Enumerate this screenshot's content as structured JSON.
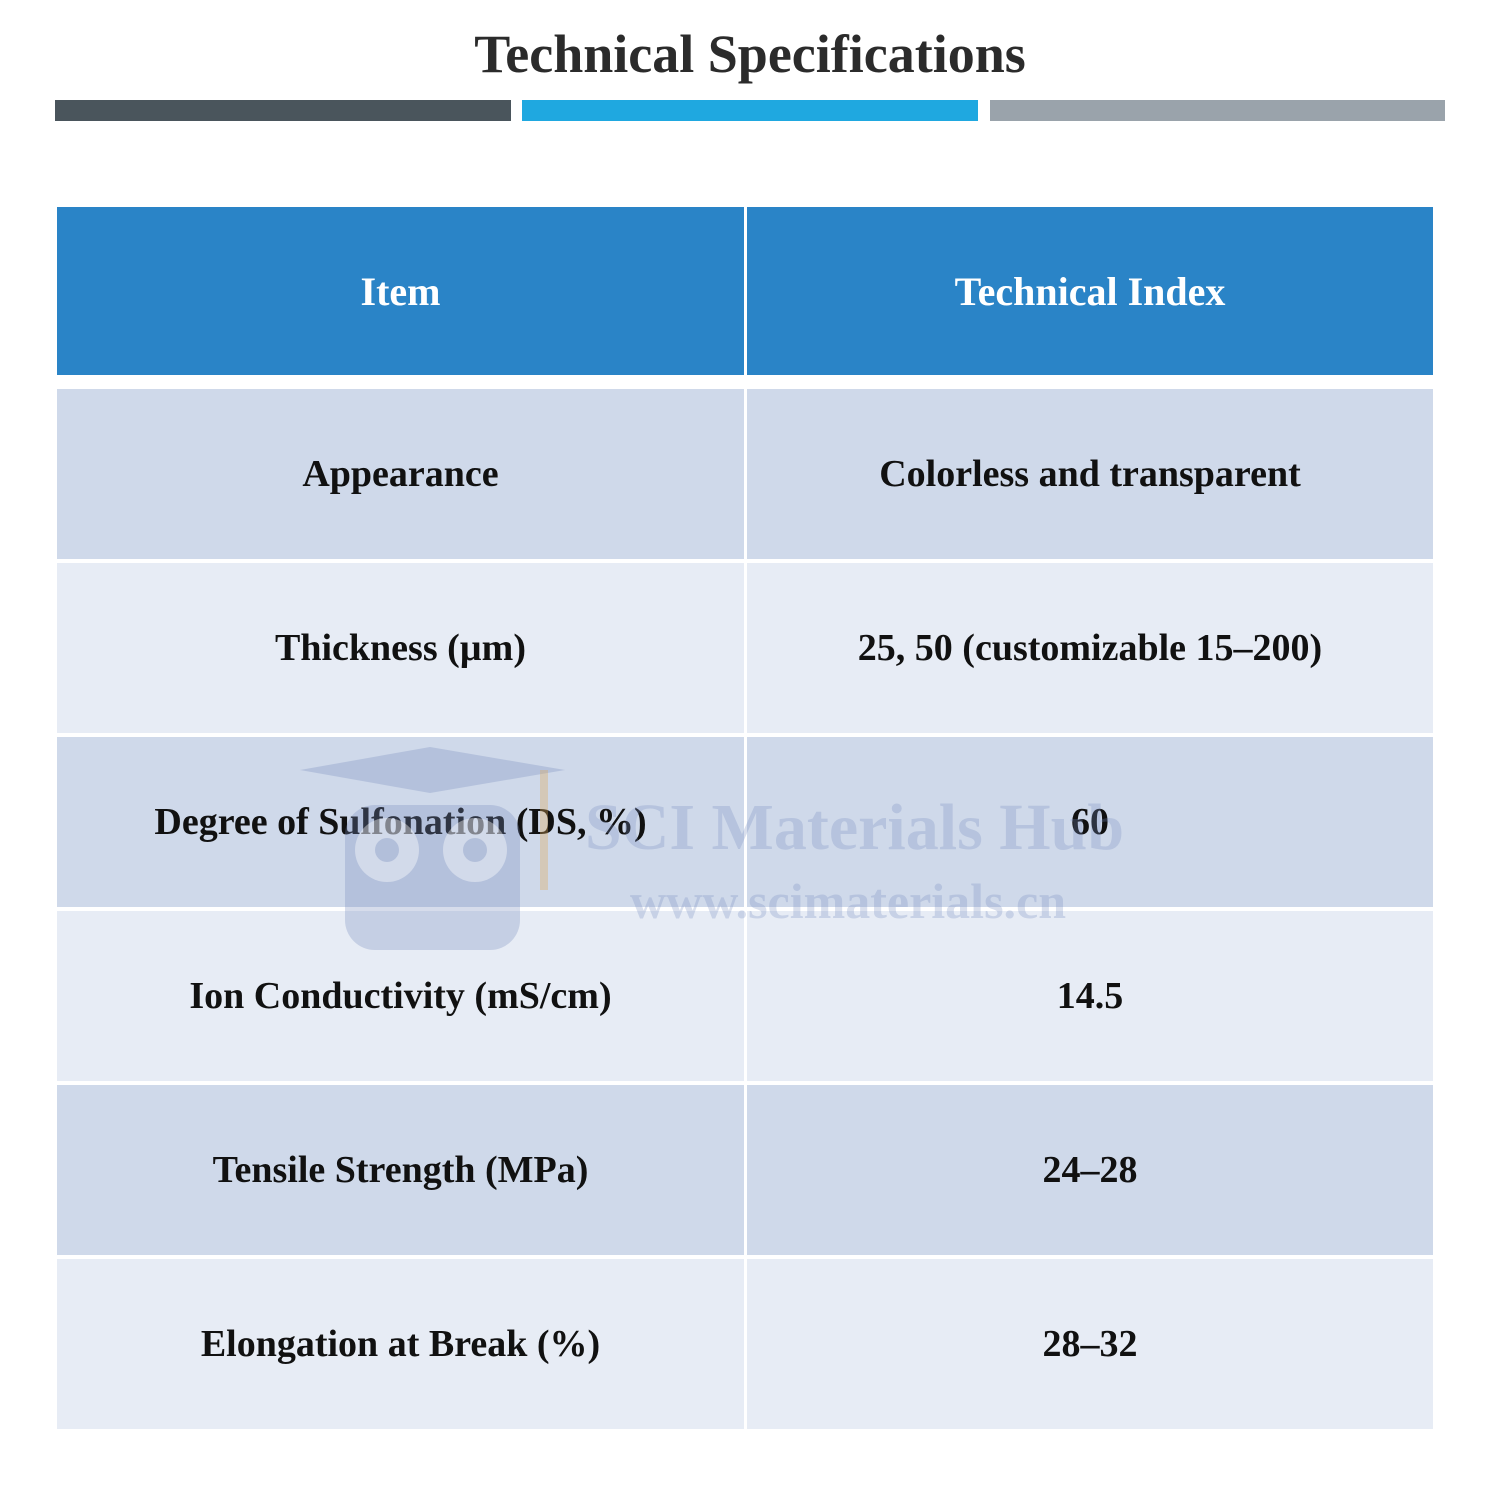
{
  "header": {
    "title": "Technical Specifications"
  },
  "table": {
    "columns": [
      "Item",
      "Technical Index"
    ],
    "rows": [
      [
        "Appearance",
        "Colorless and transparent"
      ],
      [
        "Thickness (µm)",
        "25, 50 (customizable 15–200)"
      ],
      [
        "Degree of Sulfonation (DS, %)",
        "60"
      ],
      [
        "Ion Conductivity (mS/cm)",
        "14.5"
      ],
      [
        "Tensile Strength (MPa)",
        "24–28"
      ],
      [
        "Elongation at Break (%)",
        "28–32"
      ]
    ]
  },
  "watermark": {
    "brand": "SCI Materials Hub",
    "url": "www.scimaterials.cn"
  }
}
